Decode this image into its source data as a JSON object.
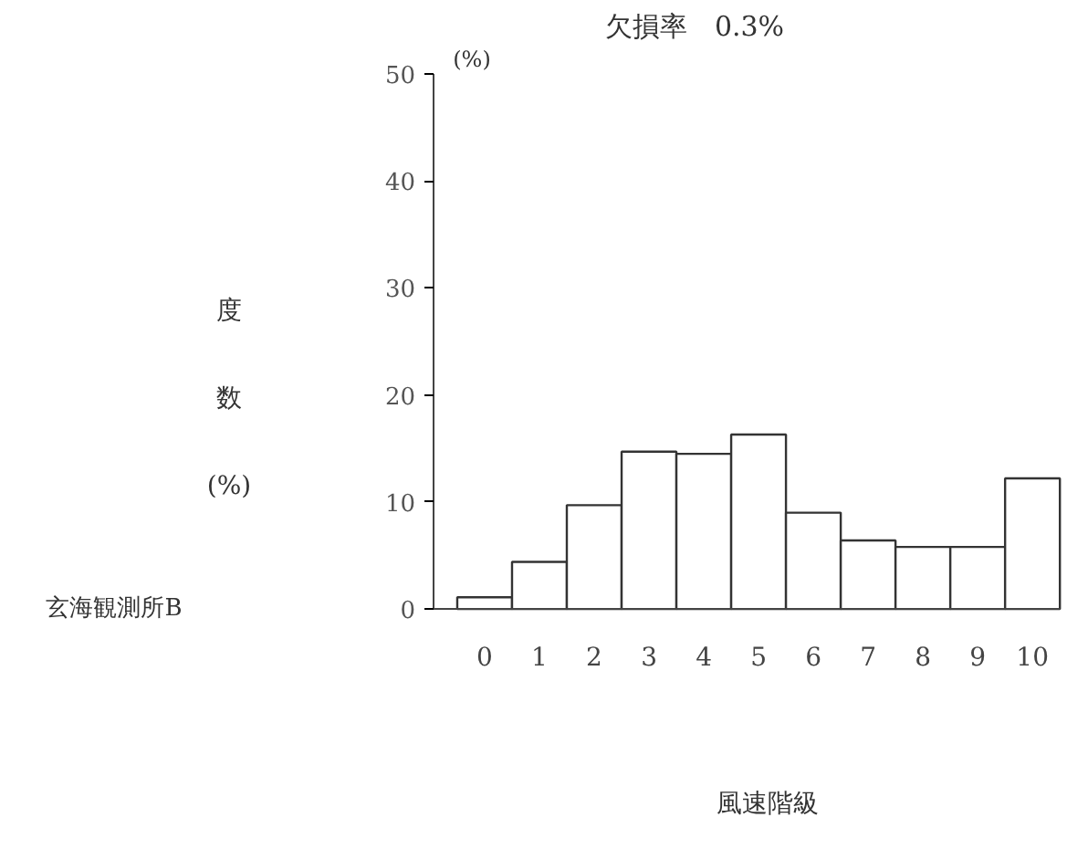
{
  "chart_data": {
    "type": "bar",
    "title": "欠損率　0.3%",
    "xlabel": "風速階級",
    "ylabel": "度数(%)",
    "annotations": [
      "(%)",
      "玄海観測所B"
    ],
    "categories": [
      "0",
      "1",
      "2",
      "3",
      "4",
      "5",
      "6",
      "7",
      "8",
      "9",
      "10"
    ],
    "values": [
      1.1,
      4.4,
      9.7,
      14.7,
      14.5,
      16.3,
      9.0,
      6.4,
      5.8,
      5.8,
      12.2
    ],
    "color": "#ffffff",
    "ylim": [
      0,
      50
    ],
    "yticks": [
      0,
      10,
      20,
      30,
      40,
      50
    ],
    "grid": false
  }
}
